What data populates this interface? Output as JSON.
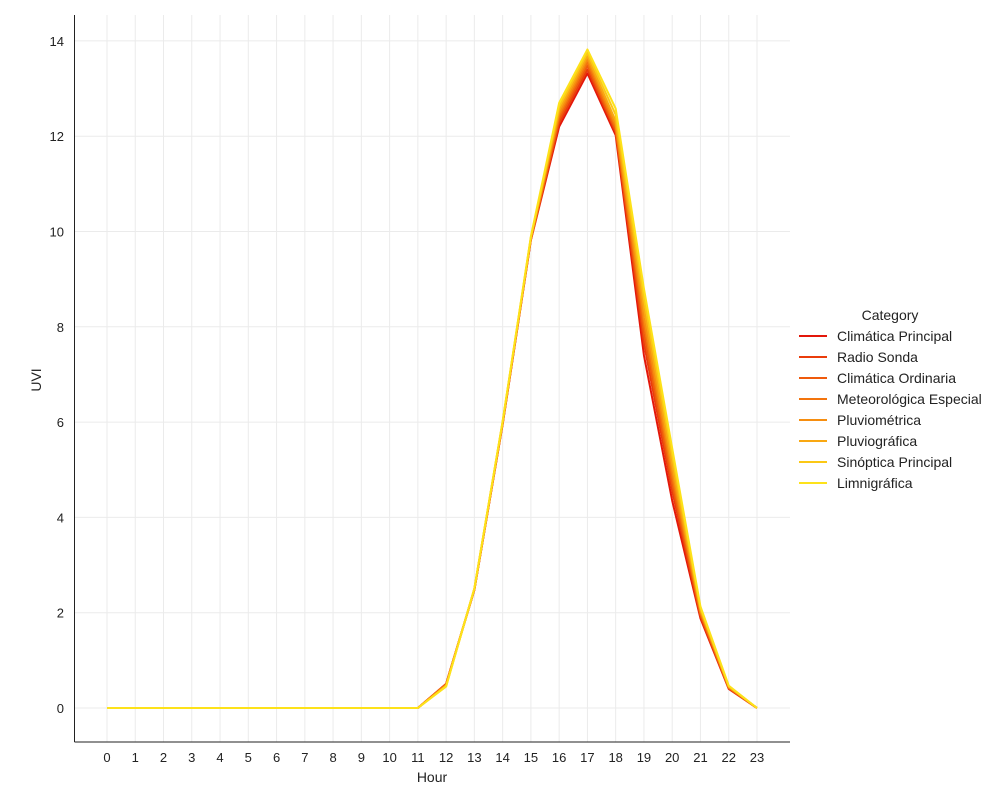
{
  "chart_data": {
    "type": "line",
    "xlabel": "Hour",
    "ylabel": "UVI",
    "x": [
      0,
      1,
      2,
      3,
      4,
      5,
      6,
      7,
      8,
      9,
      10,
      11,
      12,
      13,
      14,
      15,
      16,
      17,
      18,
      19,
      20,
      21,
      22,
      23
    ],
    "ylim": [
      -0.7,
      14.55
    ],
    "yticks": [
      0,
      2,
      4,
      6,
      8,
      10,
      12,
      14
    ],
    "grid": true,
    "legend": {
      "title": "Category",
      "placement": "right"
    },
    "series": [
      {
        "name": "Climática Principal",
        "color": "#e3170a",
        "values": [
          0,
          0,
          0,
          0,
          0,
          0,
          0,
          0,
          0,
          0,
          0,
          0,
          0.5,
          2.48,
          5.95,
          9.82,
          12.2,
          13.32,
          12.02,
          7.4,
          4.35,
          1.88,
          0.4,
          0
        ]
      },
      {
        "name": "Radio Sonda",
        "color": "#ea3c0b",
        "values": [
          0,
          0,
          0,
          0,
          0,
          0,
          0,
          0,
          0,
          0,
          0,
          0,
          0.51,
          2.48,
          5.96,
          9.83,
          12.28,
          13.4,
          12.08,
          7.65,
          4.55,
          1.92,
          0.41,
          0
        ]
      },
      {
        "name": "Climática Ordinaria",
        "color": "#ef5a0c",
        "values": [
          0,
          0,
          0,
          0,
          0,
          0,
          0,
          0,
          0,
          0,
          0,
          0,
          0.5,
          2.49,
          5.97,
          9.84,
          12.35,
          13.48,
          12.12,
          7.85,
          4.7,
          1.96,
          0.42,
          0
        ]
      },
      {
        "name": "Meteorológica Especial",
        "color": "#f3740d",
        "values": [
          0,
          0,
          0,
          0,
          0,
          0,
          0,
          0,
          0,
          0,
          0,
          0,
          0.49,
          2.49,
          5.98,
          9.85,
          12.42,
          13.55,
          12.18,
          8.05,
          4.85,
          2.0,
          0.43,
          0
        ]
      },
      {
        "name": "Pluviométrica",
        "color": "#f68e10",
        "values": [
          0,
          0,
          0,
          0,
          0,
          0,
          0,
          0,
          0,
          0,
          0,
          0,
          0.48,
          2.5,
          5.99,
          9.86,
          12.48,
          13.62,
          12.24,
          8.2,
          4.98,
          2.03,
          0.44,
          0
        ]
      },
      {
        "name": "Pluviográfica",
        "color": "#f9a812",
        "values": [
          0,
          0,
          0,
          0,
          0,
          0,
          0,
          0,
          0,
          0,
          0,
          0,
          0.47,
          2.5,
          6.0,
          9.87,
          12.55,
          13.68,
          12.32,
          8.4,
          5.12,
          2.06,
          0.45,
          0
        ]
      },
      {
        "name": "Sinóptica Principal",
        "color": "#fbc815",
        "values": [
          0,
          0,
          0,
          0,
          0,
          0,
          0,
          0,
          0,
          0,
          0,
          0,
          0.46,
          2.51,
          6.01,
          9.88,
          12.62,
          13.75,
          12.45,
          8.6,
          5.3,
          2.1,
          0.46,
          0
        ]
      },
      {
        "name": "Limnigráfica",
        "color": "#fde21a",
        "values": [
          0,
          0,
          0,
          0,
          0,
          0,
          0,
          0,
          0,
          0,
          0,
          0,
          0.45,
          2.51,
          6.02,
          9.9,
          12.7,
          13.82,
          12.58,
          8.8,
          5.45,
          2.13,
          0.47,
          0
        ]
      }
    ]
  }
}
